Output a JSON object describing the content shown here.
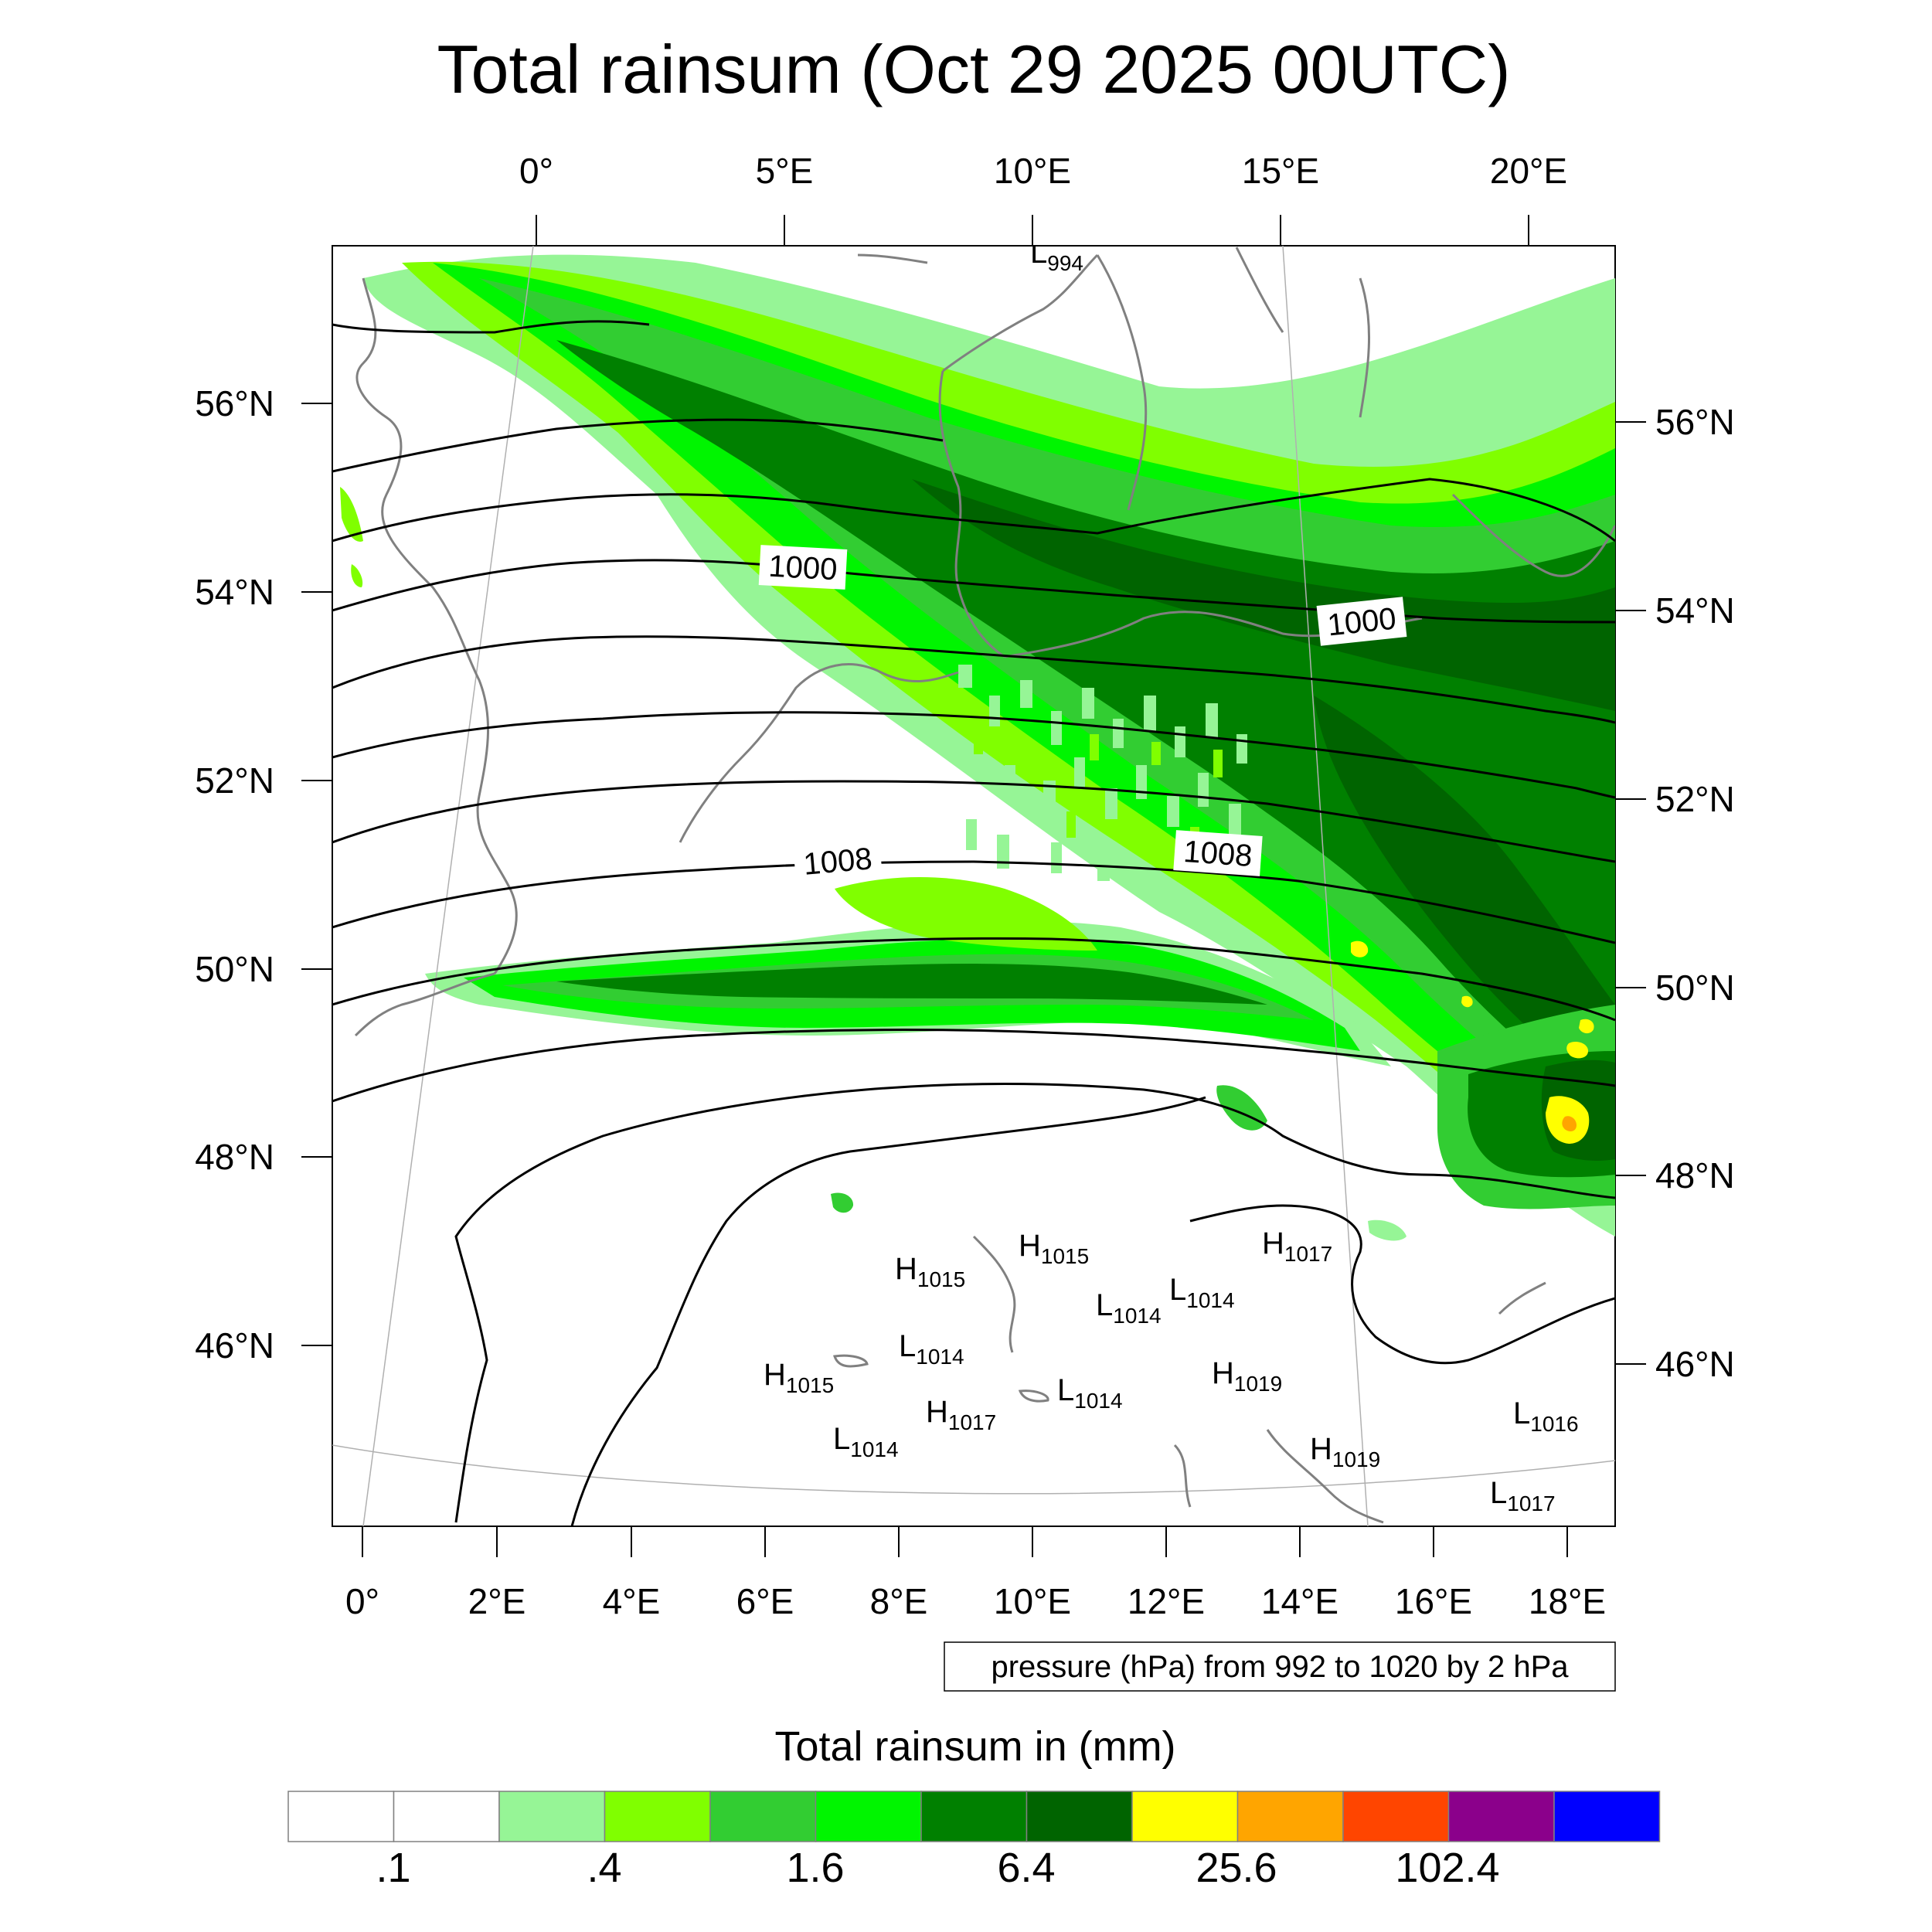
{
  "title": "Total rainsum (Oct 29 2025 00UTC)",
  "map": {
    "top_lon_ticks": [
      "0°",
      "5°E",
      "10°E",
      "15°E",
      "20°E"
    ],
    "bottom_lon_ticks": [
      "0°",
      "2°E",
      "4°E",
      "6°E",
      "8°E",
      "10°E",
      "12°E",
      "14°E",
      "16°E",
      "18°E"
    ],
    "left_lat_ticks": [
      "56°N",
      "54°N",
      "52°N",
      "50°N",
      "48°N",
      "46°N"
    ],
    "right_lat_ticks": [
      "56°N",
      "54°N",
      "52°N",
      "50°N",
      "48°N",
      "46°N"
    ],
    "isobar_labels": [
      "1000",
      "1000",
      "1008",
      "1008"
    ],
    "pressure_centers": [
      {
        "type": "L",
        "value": "994"
      },
      {
        "type": "H",
        "value": "1015"
      },
      {
        "type": "H",
        "value": "1015"
      },
      {
        "type": "H",
        "value": "1017"
      },
      {
        "type": "L",
        "value": "1014"
      },
      {
        "type": "L",
        "value": "1014"
      },
      {
        "type": "L",
        "value": "1014"
      },
      {
        "type": "H",
        "value": "1015"
      },
      {
        "type": "L",
        "value": "1014"
      },
      {
        "type": "H",
        "value": "1019"
      },
      {
        "type": "H",
        "value": "1017"
      },
      {
        "type": "L",
        "value": "1014"
      },
      {
        "type": "H",
        "value": "1019"
      },
      {
        "type": "L",
        "value": "1016"
      },
      {
        "type": "L",
        "value": "1017"
      }
    ],
    "pressure_note": "pressure (hPa) from 992 to 1020 by 2 hPa"
  },
  "colorbar": {
    "title": "Total rainsum in (mm)",
    "colors": [
      "#ffffff",
      "#ffffff",
      "#96f596",
      "#80ff00",
      "#32cd32",
      "#00f500",
      "#008000",
      "#006400",
      "#ffff00",
      "#ffa500",
      "#ff4500",
      "#8b008b",
      "#0000ff"
    ],
    "labels": [
      ".1",
      ".4",
      "1.6",
      "6.4",
      "25.6",
      "102.4"
    ]
  }
}
